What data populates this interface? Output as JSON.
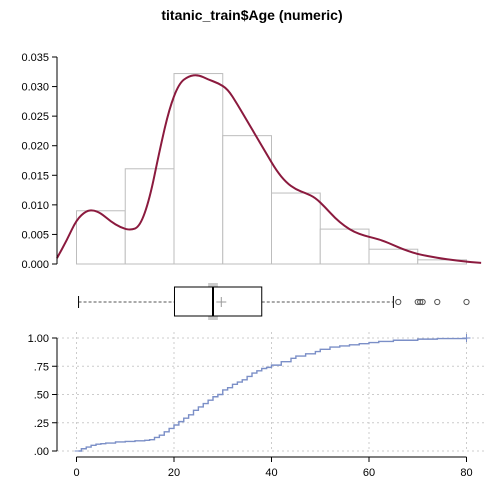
{
  "chart_data": {
    "title": "titanic_train$Age (numeric)",
    "panels": [
      {
        "type": "bar",
        "subtype": "histogram_with_density",
        "bins": [
          {
            "x0": 0,
            "x1": 10,
            "density": 0.009
          },
          {
            "x0": 10,
            "x1": 20,
            "density": 0.0161
          },
          {
            "x0": 20,
            "x1": 30,
            "density": 0.0322
          },
          {
            "x0": 30,
            "x1": 40,
            "density": 0.0217
          },
          {
            "x0": 40,
            "x1": 50,
            "density": 0.012
          },
          {
            "x0": 50,
            "x1": 60,
            "density": 0.0059
          },
          {
            "x0": 60,
            "x1": 70,
            "density": 0.0025
          },
          {
            "x0": 70,
            "x1": 80,
            "density": 0.0007
          }
        ],
        "density_curve": {
          "x": [
            -4,
            -2,
            0,
            2,
            3.5,
            5,
            7,
            9,
            11,
            13,
            15,
            17,
            19,
            21,
            23,
            25,
            27,
            29,
            31,
            33,
            35,
            37,
            39,
            41,
            43,
            45,
            47,
            49,
            51,
            53,
            55,
            57,
            59,
            61,
            63,
            65,
            67,
            69,
            71,
            73,
            75,
            77,
            79,
            81,
            83
          ],
          "y": [
            0.001,
            0.004,
            0.0075,
            0.009,
            0.0091,
            0.0086,
            0.0072,
            0.0062,
            0.0057,
            0.0063,
            0.011,
            0.019,
            0.0262,
            0.0305,
            0.0318,
            0.032,
            0.0312,
            0.0306,
            0.0296,
            0.027,
            0.0242,
            0.0214,
            0.0186,
            0.0158,
            0.0138,
            0.0126,
            0.012,
            0.0112,
            0.0096,
            0.0078,
            0.0064,
            0.0054,
            0.0048,
            0.0044,
            0.0039,
            0.0032,
            0.0025,
            0.0019,
            0.0015,
            0.0012,
            0.0009,
            0.0007,
            0.0005,
            0.0003,
            0.0002
          ],
          "color": "#8b1a3e"
        },
        "ylim": [
          0,
          0.035
        ],
        "yticks": [
          0,
          0.005,
          0.01,
          0.015,
          0.02,
          0.025,
          0.03,
          0.035
        ],
        "ytick_labels": [
          "0.000",
          "0.005",
          "0.010",
          "0.015",
          "0.020",
          "0.025",
          "0.030",
          "0.035"
        ]
      },
      {
        "type": "boxplot",
        "min": 0.42,
        "q1": 20.1,
        "median": 28,
        "mean": 29.7,
        "q3": 38,
        "whisker_high": 65,
        "outliers": [
          66,
          70,
          70.5,
          71,
          74,
          80
        ],
        "median_ci": [
          27.0,
          29.0
        ],
        "ci_color": "#cccccc"
      },
      {
        "type": "line",
        "subtype": "ecdf",
        "color": "#7b8fc7",
        "x": [
          0.42,
          1,
          2,
          3,
          4,
          5,
          6,
          8,
          10,
          12,
          14,
          15,
          16,
          17,
          18,
          19,
          20,
          21,
          22,
          23,
          24,
          25,
          26,
          27,
          28,
          29,
          30,
          31,
          32,
          33,
          34,
          35,
          36,
          37,
          38,
          39,
          40,
          42,
          44,
          45,
          47,
          49,
          50,
          52,
          54,
          56,
          58,
          60,
          62,
          65,
          70,
          74,
          80
        ],
        "y": [
          0.0,
          0.02,
          0.035,
          0.05,
          0.06,
          0.065,
          0.07,
          0.08,
          0.085,
          0.09,
          0.095,
          0.1,
          0.12,
          0.14,
          0.17,
          0.2,
          0.23,
          0.26,
          0.29,
          0.32,
          0.36,
          0.39,
          0.42,
          0.45,
          0.48,
          0.5,
          0.54,
          0.56,
          0.59,
          0.61,
          0.63,
          0.66,
          0.69,
          0.71,
          0.73,
          0.74,
          0.76,
          0.79,
          0.82,
          0.84,
          0.86,
          0.88,
          0.9,
          0.92,
          0.93,
          0.94,
          0.95,
          0.96,
          0.97,
          0.98,
          0.99,
          0.995,
          1.0
        ],
        "ylim": [
          0,
          1
        ],
        "yticks": [
          0,
          0.25,
          0.5,
          0.75,
          1.0
        ],
        "ytick_labels": [
          ".00",
          ".25",
          ".50",
          ".75",
          "1.00"
        ]
      }
    ],
    "xlim": [
      -4,
      84
    ],
    "xticks": [
      0,
      20,
      40,
      60,
      80
    ],
    "xtick_labels": [
      "0",
      "20",
      "40",
      "60",
      "80"
    ],
    "grid": true
  }
}
